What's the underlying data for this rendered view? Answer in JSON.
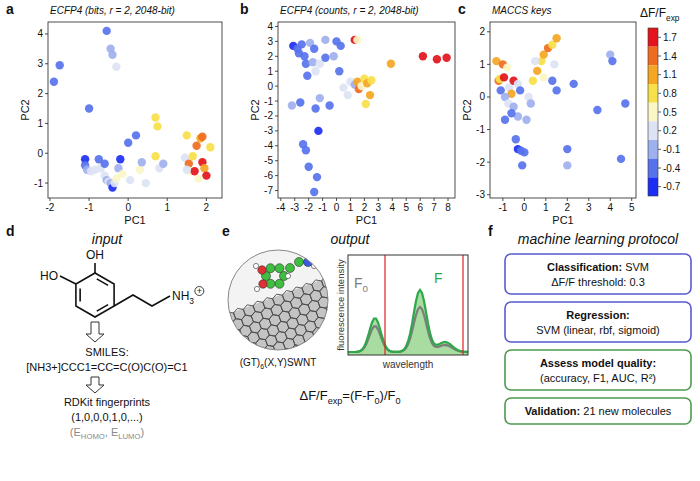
{
  "chart_data": [
    {
      "type": "scatter",
      "panel": "a",
      "title": "ECFP4 (bits, r = 2, 2048-bit)",
      "xlabel": "PC1",
      "ylabel": "PC2",
      "xlim": [
        -2.05,
        2.4
      ],
      "ylim": [
        -1.5,
        4.4
      ],
      "xticks": [
        -2,
        -1,
        0,
        1,
        2
      ],
      "yticks": [
        -1,
        0,
        1,
        2,
        3,
        4
      ],
      "x": [
        -1.9,
        -1.75,
        -0.55,
        -0.45,
        -0.4,
        -1.0,
        -0.3,
        -1.1,
        -1.1,
        -1.05,
        -0.95,
        -0.85,
        -0.75,
        -0.7,
        -0.6,
        -0.55,
        -0.5,
        -0.45,
        -0.4,
        -0.35,
        -0.3,
        -0.25,
        -0.2,
        -0.15,
        -0.6,
        0.0,
        0.2,
        0.05,
        0.3,
        0.45,
        0.35,
        0.7,
        0.75,
        0.7,
        0.8,
        0.9,
        1.5,
        1.45,
        1.55,
        1.6,
        1.7,
        1.75,
        1.85,
        1.9,
        1.95,
        2.0,
        1.9,
        2.1,
        1.65,
        1.8,
        1.5
      ],
      "values": [
        2.4,
        2.95,
        4.1,
        3.5,
        3.3,
        1.5,
        2.9,
        -0.2,
        -0.4,
        -0.55,
        -0.6,
        -0.55,
        -0.2,
        -0.5,
        -0.75,
        -0.9,
        -0.95,
        -1.0,
        -1.15,
        -1.0,
        -0.85,
        -0.5,
        -0.2,
        -0.7,
        -0.35,
        0.35,
        0.6,
        -0.9,
        -0.55,
        -1.0,
        -0.3,
        1.2,
        0.9,
        -0.1,
        -0.5,
        -0.35,
        0.6,
        -0.15,
        -0.35,
        -0.6,
        -0.6,
        0.25,
        0.5,
        -0.3,
        -0.5,
        -0.75,
        0.55,
        0.2,
        -0.1,
        -0.85,
        -0.55
      ],
      "dff": [
        -0.5,
        -0.3,
        -0.4,
        0.0,
        -0.2,
        -0.5,
        0.1,
        -0.6,
        -0.4,
        -0.2,
        0.2,
        0.1,
        -0.3,
        0.2,
        0.2,
        0.0,
        0.3,
        -0.1,
        -0.6,
        0.2,
        0.4,
        -0.2,
        -0.7,
        0.5,
        -0.5,
        -0.4,
        -0.5,
        0.3,
        0.4,
        0.2,
        -0.2,
        0.8,
        0.8,
        0.8,
        0.2,
        0.0,
        0.8,
        0.2,
        1.4,
        0.5,
        1.7,
        1.4,
        1.0,
        1.7,
        1.1,
        1.7,
        1.4,
        0.8,
        0.8,
        0.5,
        0.2
      ]
    },
    {
      "type": "scatter",
      "panel": "b",
      "title": "ECFP4 (counts, r = 2, 2048-bit)",
      "xlabel": "PC1",
      "ylabel": "PC2",
      "xlim": [
        -4.2,
        8.5
      ],
      "ylim": [
        -7.5,
        4.3
      ],
      "xticks": [
        -4,
        -3,
        -2,
        -1,
        0,
        1,
        2,
        3,
        4,
        5,
        6,
        7,
        8
      ],
      "yticks": [
        -7,
        -6,
        -5,
        -4,
        -3,
        -2,
        -1,
        0,
        1,
        2,
        3,
        4
      ],
      "x": [
        -3.1,
        -2.8,
        -2.7,
        -2.5,
        -2.3,
        -2.2,
        -1.9,
        -1.6,
        -2.1,
        -1.7,
        -1.2,
        -1.5,
        -0.2,
        0.0,
        0.3,
        -0.8,
        0.2,
        -0.8,
        1.3,
        1.5,
        1.0,
        1.3,
        1.5,
        1.6,
        1.8,
        2.0,
        2.2,
        2.5,
        2.4,
        2.1,
        3.9,
        0.5,
        0.8,
        -3.2,
        -2.6,
        -1.5,
        -1.2,
        -2.4,
        -2.2,
        -2.0,
        -1.3,
        -1.4,
        -1.6,
        -0.5,
        6.2,
        7.2,
        7.9
      ],
      "values": [
        2.7,
        2.5,
        2.2,
        2.8,
        2.0,
        1.5,
        2.9,
        2.5,
        0.7,
        1.6,
        1.5,
        1.0,
        2.0,
        3.0,
        2.7,
        3.1,
        1.0,
        1.9,
        3.1,
        3.1,
        0.3,
        0.1,
        0.3,
        -0.2,
        0.0,
        0.5,
        0.2,
        0.4,
        -0.6,
        -1.2,
        1.5,
        -0.1,
        -0.6,
        -1.3,
        -1.1,
        -1.5,
        -0.8,
        -3.9,
        -4.3,
        -5.4,
        -3.0,
        -6.1,
        -7.1,
        -1.3,
        2.0,
        1.8,
        1.9
      ],
      "dff": [
        -0.6,
        -0.5,
        -0.4,
        -0.4,
        -0.3,
        -0.5,
        -0.2,
        -0.4,
        -0.3,
        0.0,
        0.2,
        0.1,
        -0.1,
        -0.3,
        -0.4,
        -0.2,
        -0.5,
        -0.3,
        1.7,
        0.5,
        0.2,
        -0.1,
        1.1,
        1.4,
        0.5,
        0.8,
        1.1,
        0.8,
        1.1,
        0.8,
        1.1,
        0.3,
        0.2,
        -0.2,
        -0.4,
        -0.5,
        -0.2,
        -0.3,
        -0.5,
        -0.4,
        -0.8,
        -0.3,
        -0.4,
        -0.3,
        1.7,
        1.7,
        1.7
      ]
    },
    {
      "type": "scatter",
      "panel": "c",
      "title": "MACCS keys",
      "xlabel": "PC1",
      "ylabel": "PC2",
      "xlim": [
        -1.6,
        5.2
      ],
      "ylim": [
        -3.1,
        2.3
      ],
      "xticks": [
        -1,
        0,
        1,
        2,
        3,
        4,
        5
      ],
      "yticks": [
        -3,
        -2,
        -1,
        0,
        1,
        2
      ],
      "x": [
        -1.3,
        -1.2,
        -1.15,
        -1.0,
        -0.95,
        -0.8,
        -0.7,
        -0.6,
        -0.5,
        -0.3,
        -1.1,
        -0.9,
        -0.75,
        -0.5,
        -0.3,
        -0.2,
        -0.6,
        -0.9,
        -0.4,
        -0.3,
        -0.15,
        0.0,
        -0.1,
        0.1,
        0.2,
        0.4,
        0.6,
        0.8,
        0.9,
        1.1,
        1.3,
        1.5,
        1.4,
        0.9,
        0.5,
        0.3,
        1.3,
        1.5,
        2.0,
        2.0,
        2.3,
        4.0,
        4.1,
        4.5,
        4.7,
        3.4
      ],
      "values": [
        1.1,
        0.5,
        0.55,
        1.0,
        0.6,
        0.9,
        0.3,
        0.1,
        0.5,
        0.4,
        0.2,
        0.0,
        -0.2,
        -0.3,
        -0.6,
        0.2,
        -0.5,
        -0.7,
        -1.3,
        -1.6,
        -1.65,
        -1.7,
        -2.1,
        -0.7,
        0.0,
        0.5,
        0.8,
        1.1,
        1.3,
        1.5,
        1.6,
        1.8,
        1.0,
        0.6,
        1.1,
        -0.2,
        0.5,
        0.2,
        -1.6,
        -2.1,
        0.4,
        1.3,
        1.1,
        -1.9,
        -0.2,
        -0.4
      ],
      "dff": [
        1.1,
        1.4,
        0.8,
        1.4,
        1.7,
        0.5,
        0.2,
        1.1,
        1.7,
        0.2,
        -0.3,
        -0.2,
        0.2,
        -0.1,
        -0.2,
        -0.5,
        -0.3,
        -0.4,
        -0.3,
        -0.7,
        -0.5,
        -0.4,
        -0.3,
        -0.2,
        0.2,
        0.8,
        1.1,
        0.8,
        1.1,
        1.4,
        0.8,
        1.1,
        0.2,
        0.5,
        0.2,
        -0.1,
        -0.3,
        -0.4,
        -0.3,
        -0.2,
        -0.3,
        -0.1,
        -0.3,
        -0.4,
        -0.5,
        -0.3
      ]
    }
  ],
  "colorbar": {
    "label": [
      {
        "text": "ΔF/F"
      },
      {
        "text": "exp",
        "sub": true
      }
    ],
    "lim": [
      -0.85,
      1.85
    ],
    "ticks": [
      1.7,
      1.4,
      1.1,
      0.8,
      0.5,
      0.2,
      -0.1,
      -0.4,
      -0.7
    ],
    "colors": [
      "#e3141c",
      "#ef6c1f",
      "#f5a623",
      "#f8e04a",
      "#faf6c6",
      "#dde3f5",
      "#9fb0ee",
      "#5773eb",
      "#1d2ff5"
    ]
  },
  "input_panel": {
    "letter": "d",
    "title": "input",
    "molecule": {
      "hydroxyl_top": "OH",
      "hydroxyl_left": "HO",
      "amine": [
        {
          "text": "NH"
        },
        {
          "text": "3",
          "sub": true
        }
      ],
      "charge": "+"
    },
    "smiles_label": "SMILES:",
    "smiles": "[NH3+]CCC1=CC=C(O)C(O)=C1",
    "fingerprint_label": "RDKit fingerprints",
    "fingerprint": "(1,0,0,0,1,0,...)",
    "descriptors": [
      {
        "text": "(E"
      },
      {
        "text": "HOMO",
        "sub": true
      },
      {
        "text": ", E"
      },
      {
        "text": "LUMO",
        "sub": true
      },
      {
        "text": ")"
      }
    ]
  },
  "output_panel": {
    "letter": "e",
    "title": "output",
    "complex_label": [
      {
        "text": "(GT)"
      },
      {
        "text": "6",
        "sub": true
      },
      {
        "text": "(X,Y)SWNT"
      }
    ],
    "y_label": "fluorescence intensity",
    "x_label": "wavelength",
    "curve_f": "F",
    "curve_f0": [
      {
        "text": "F"
      },
      {
        "text": "0",
        "sub": true
      }
    ],
    "formula": [
      {
        "text": "ΔF/F"
      },
      {
        "text": "exp",
        "sub": true
      },
      {
        "text": "=(F-F"
      },
      {
        "text": "0",
        "sub": true
      },
      {
        "text": ")/F"
      },
      {
        "text": "0",
        "sub": true
      }
    ]
  },
  "protocol_panel": {
    "letter": "f",
    "title": "machine learning protocol",
    "boxes": [
      {
        "head": "Classification:",
        "tail": "SVM",
        "next": "ΔF/F threshold: 0.3",
        "color": "#5a5ad2"
      },
      {
        "head": "Regression:",
        "next": "SVM (linear, rbf, sigmoid)",
        "color": "#5a5ad2"
      },
      {
        "head": "Assess model quality:",
        "next": "(accuracy, F1, AUC, R²)",
        "color": "#4f9a4f"
      },
      {
        "head": "Validation:",
        "tail": "21 new molecules",
        "color": "#4f9a4f"
      }
    ]
  }
}
